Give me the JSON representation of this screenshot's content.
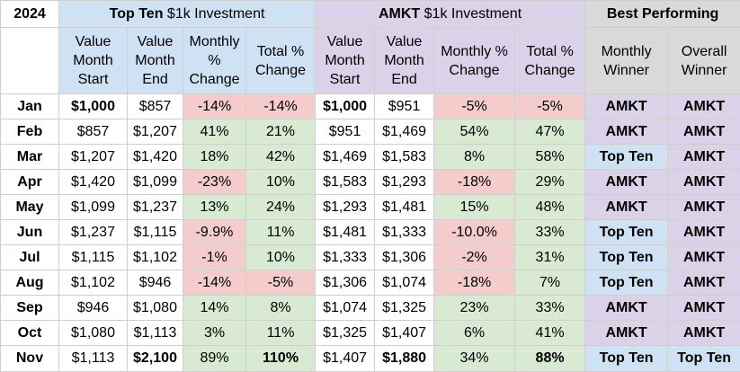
{
  "year": "2024",
  "groups": {
    "topten": {
      "bold": "Top Ten",
      "rest": " $1k Investment"
    },
    "amkt": {
      "bold": "AMKT",
      "rest": " $1k Investment"
    },
    "best": "Best Performing"
  },
  "headers": {
    "value_start": "Value Month Start",
    "value_end": "Value Month End",
    "monthly_change": "Monthly % Change",
    "total_change": "Total % Change",
    "monthly_winner": "Monthly Winner",
    "overall_winner": "Overall Winner"
  },
  "rows": [
    {
      "month": "Jan",
      "tt_start": "$1,000",
      "tt_end": "$857",
      "tt_mchg": "-14%",
      "tt_tchg": "-14%",
      "am_start": "$1,000",
      "am_end": "$951",
      "am_mchg": "-5%",
      "am_tchg": "-5%",
      "mwin": "AMKT",
      "owin": "AMKT"
    },
    {
      "month": "Feb",
      "tt_start": "$857",
      "tt_end": "$1,207",
      "tt_mchg": "41%",
      "tt_tchg": "21%",
      "am_start": "$951",
      "am_end": "$1,469",
      "am_mchg": "54%",
      "am_tchg": "47%",
      "mwin": "AMKT",
      "owin": "AMKT"
    },
    {
      "month": "Mar",
      "tt_start": "$1,207",
      "tt_end": "$1,420",
      "tt_mchg": "18%",
      "tt_tchg": "42%",
      "am_start": "$1,469",
      "am_end": "$1,583",
      "am_mchg": "8%",
      "am_tchg": "58%",
      "mwin": "Top Ten",
      "owin": "AMKT"
    },
    {
      "month": "Apr",
      "tt_start": "$1,420",
      "tt_end": "$1,099",
      "tt_mchg": "-23%",
      "tt_tchg": "10%",
      "am_start": "$1,583",
      "am_end": "$1,293",
      "am_mchg": "-18%",
      "am_tchg": "29%",
      "mwin": "AMKT",
      "owin": "AMKT"
    },
    {
      "month": "May",
      "tt_start": "$1,099",
      "tt_end": "$1,237",
      "tt_mchg": "13%",
      "tt_tchg": "24%",
      "am_start": "$1,293",
      "am_end": "$1,481",
      "am_mchg": "15%",
      "am_tchg": "48%",
      "mwin": "AMKT",
      "owin": "AMKT"
    },
    {
      "month": "Jun",
      "tt_start": "$1,237",
      "tt_end": "$1,115",
      "tt_mchg": "-9.9%",
      "tt_tchg": "11%",
      "am_start": "$1,481",
      "am_end": "$1,333",
      "am_mchg": "-10.0%",
      "am_tchg": "33%",
      "mwin": "Top Ten",
      "owin": "AMKT"
    },
    {
      "month": "Jul",
      "tt_start": "$1,115",
      "tt_end": "$1,102",
      "tt_mchg": "-1%",
      "tt_tchg": "10%",
      "am_start": "$1,333",
      "am_end": "$1,306",
      "am_mchg": "-2%",
      "am_tchg": "31%",
      "mwin": "Top Ten",
      "owin": "AMKT"
    },
    {
      "month": "Aug",
      "tt_start": "$1,102",
      "tt_end": "$946",
      "tt_mchg": "-14%",
      "tt_tchg": "-5%",
      "am_start": "$1,306",
      "am_end": "$1,074",
      "am_mchg": "-18%",
      "am_tchg": "7%",
      "mwin": "Top Ten",
      "owin": "AMKT"
    },
    {
      "month": "Sep",
      "tt_start": "$946",
      "tt_end": "$1,080",
      "tt_mchg": "14%",
      "tt_tchg": "8%",
      "am_start": "$1,074",
      "am_end": "$1,325",
      "am_mchg": "23%",
      "am_tchg": "33%",
      "mwin": "AMKT",
      "owin": "AMKT"
    },
    {
      "month": "Oct",
      "tt_start": "$1,080",
      "tt_end": "$1,113",
      "tt_mchg": "3%",
      "tt_tchg": "11%",
      "am_start": "$1,325",
      "am_end": "$1,407",
      "am_mchg": "6%",
      "am_tchg": "41%",
      "mwin": "AMKT",
      "owin": "AMKT"
    },
    {
      "month": "Nov",
      "tt_start": "$1,113",
      "tt_end": "$2,100",
      "tt_mchg": "89%",
      "tt_tchg": "110%",
      "am_start": "$1,407",
      "am_end": "$1,880",
      "am_mchg": "34%",
      "am_tchg": "88%",
      "mwin": "Top Ten",
      "owin": "Top Ten"
    }
  ],
  "colors": {
    "topten_header": "#cfe2f3",
    "amkt_header": "#d9d2e9",
    "best_header": "#d9d9d9",
    "negative": "#f4cccc",
    "positive": "#d9ead3"
  }
}
